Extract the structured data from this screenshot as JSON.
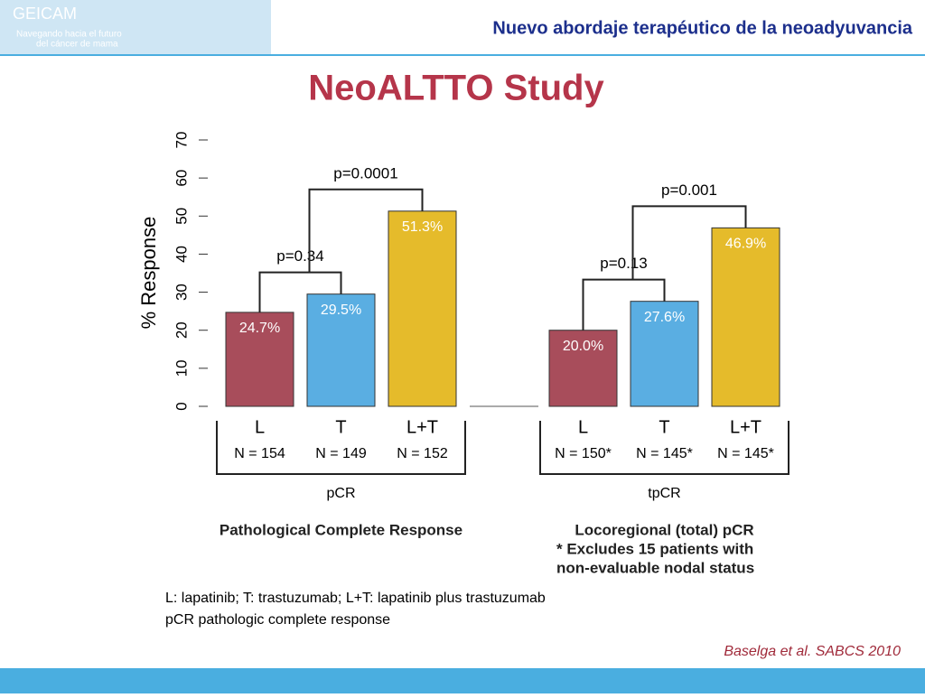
{
  "header": {
    "title": "Nuevo abordaje terapéutico de la neoadyuvancia",
    "logo": [
      "GEICAM",
      "Navegando hacia el futuro",
      "del cáncer de mama"
    ]
  },
  "slide_title": "NeoALTTO Study",
  "chart_data": {
    "type": "bar",
    "y_label": "% Response",
    "ylim": [
      0,
      70
    ],
    "yticks": [
      0,
      10,
      20,
      30,
      40,
      50,
      60,
      70
    ],
    "colors": [
      "#a84d5b",
      "#5aaee2",
      "#e5bb2b"
    ],
    "groups": [
      {
        "name": "pCR",
        "caption": [
          "Pathological Complete Response"
        ],
        "categories": [
          "L",
          "T",
          "L+T"
        ],
        "n_labels": [
          "N = 154",
          "N = 149",
          "N = 152"
        ],
        "values": [
          24.7,
          29.5,
          51.3
        ],
        "value_labels": [
          "24.7%",
          "29.5%",
          "51.3%"
        ],
        "comparisons": [
          "p=0.34",
          "p=0.0001"
        ]
      },
      {
        "name": "tpCR",
        "caption": [
          "Locoregional (total) pCR",
          "* Excludes 15 patients with",
          "non-evaluable nodal status"
        ],
        "categories": [
          "L",
          "T",
          "L+T"
        ],
        "n_labels": [
          "N = 150*",
          "N = 145*",
          "N = 145*"
        ],
        "values": [
          20.0,
          27.6,
          46.9
        ],
        "value_labels": [
          "20.0%",
          "27.6%",
          "46.9%"
        ],
        "comparisons": [
          "p=0.13",
          "p=0.001"
        ]
      }
    ]
  },
  "footnote": [
    "L: lapatinib; T: trastuzumab; L+T: lapatinib plus trastuzumab",
    "pCR pathologic complete response"
  ],
  "citation": "Baselga et al. SABCS 2010"
}
